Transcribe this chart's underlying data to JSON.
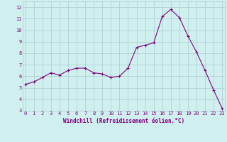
{
  "x": [
    0,
    1,
    2,
    3,
    4,
    5,
    6,
    7,
    8,
    9,
    10,
    11,
    12,
    13,
    14,
    15,
    16,
    17,
    18,
    19,
    20,
    21,
    22,
    23
  ],
  "y": [
    5.3,
    5.5,
    5.9,
    6.3,
    6.1,
    6.5,
    6.7,
    6.7,
    6.3,
    6.2,
    5.9,
    6.0,
    6.7,
    8.5,
    8.7,
    8.9,
    11.2,
    11.8,
    11.1,
    9.5,
    8.1,
    6.5,
    4.8,
    3.2
  ],
  "line_color": "#800080",
  "marker": "+",
  "marker_color": "#800080",
  "bg_color": "#d0f0f0",
  "grid_color": "#aacccc",
  "xlabel": "Windchill (Refroidissement éolien,°C)",
  "ylim": [
    3,
    12.5
  ],
  "yticks": [
    3,
    4,
    5,
    6,
    7,
    8,
    9,
    10,
    11,
    12
  ],
  "xticks": [
    0,
    1,
    2,
    3,
    4,
    5,
    6,
    7,
    8,
    9,
    10,
    11,
    12,
    13,
    14,
    15,
    16,
    17,
    18,
    19,
    20,
    21,
    22,
    23
  ],
  "label_color": "#800080",
  "figsize": [
    3.2,
    2.0
  ],
  "dpi": 100
}
